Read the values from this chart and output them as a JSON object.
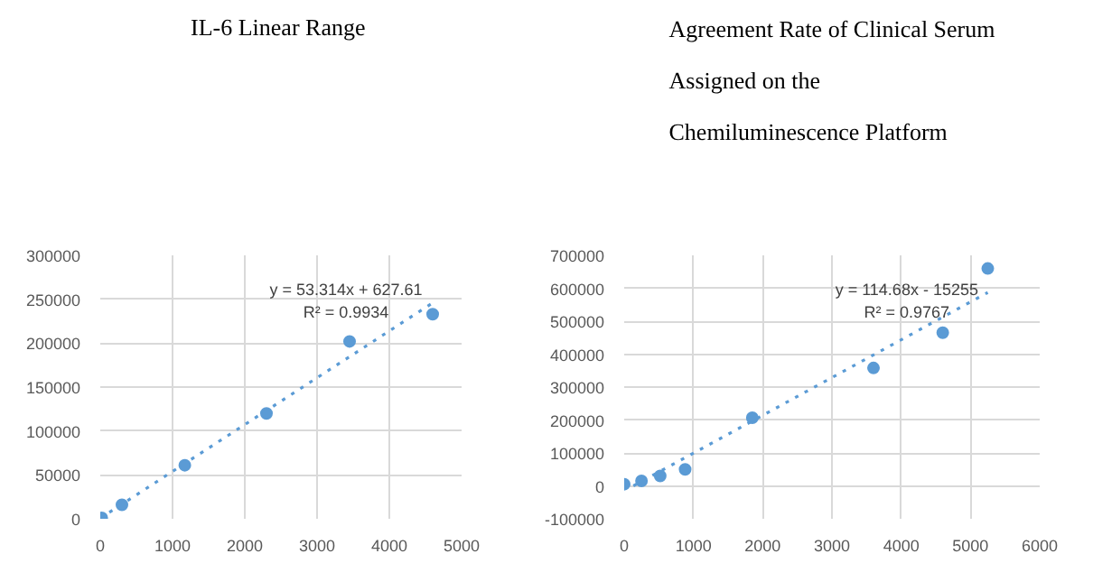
{
  "chart_data": [
    {
      "type": "scatter",
      "title": "IL-6  Linear Range",
      "color": "#5b9bd5",
      "grid": true,
      "series": [
        {
          "marker": "circle",
          "x": [
            20,
            300,
            1170,
            2300,
            3450,
            4600
          ],
          "values": [
            1000,
            16000,
            61000,
            120000,
            202000,
            233000
          ]
        },
        {
          "type": "line",
          "marker": "none",
          "line_style": "dotted",
          "x": [
            0,
            4600
          ],
          "values": [
            600,
            245900
          ]
        }
      ],
      "xlim": [
        0,
        5000
      ],
      "xticks": [
        0,
        1000,
        2000,
        3000,
        4000,
        5000
      ],
      "ylim": [
        0,
        300000
      ],
      "yticks": [
        0,
        50000,
        100000,
        150000,
        200000,
        250000,
        300000
      ],
      "annotations": [
        "y = 53.314x + 627.61",
        "R² = 0.9934"
      ]
    },
    {
      "type": "scatter",
      "title": "Agreement Rate of Clinical Serum\nAssigned on the\nChemiluminescence Platform",
      "color": "#5b9bd5",
      "grid": true,
      "series": [
        {
          "marker": "circle",
          "x": [
            0,
            250,
            520,
            880,
            1850,
            3600,
            4600,
            5250
          ],
          "values": [
            5000,
            15000,
            30000,
            50000,
            207000,
            358000,
            465000,
            660000
          ]
        },
        {
          "type": "line",
          "marker": "none",
          "line_style": "dotted",
          "x": [
            133,
            5250
          ],
          "values": [
            0,
            587000
          ]
        }
      ],
      "xlim": [
        0,
        6000
      ],
      "xticks": [
        0,
        1000,
        2000,
        3000,
        4000,
        5000,
        6000
      ],
      "ylim": [
        -100000,
        700000
      ],
      "yticks": [
        -100000,
        0,
        100000,
        200000,
        300000,
        400000,
        500000,
        600000,
        700000
      ],
      "annotations": [
        "y = 114.68x - 15255",
        "R² = 0.9767"
      ]
    }
  ]
}
